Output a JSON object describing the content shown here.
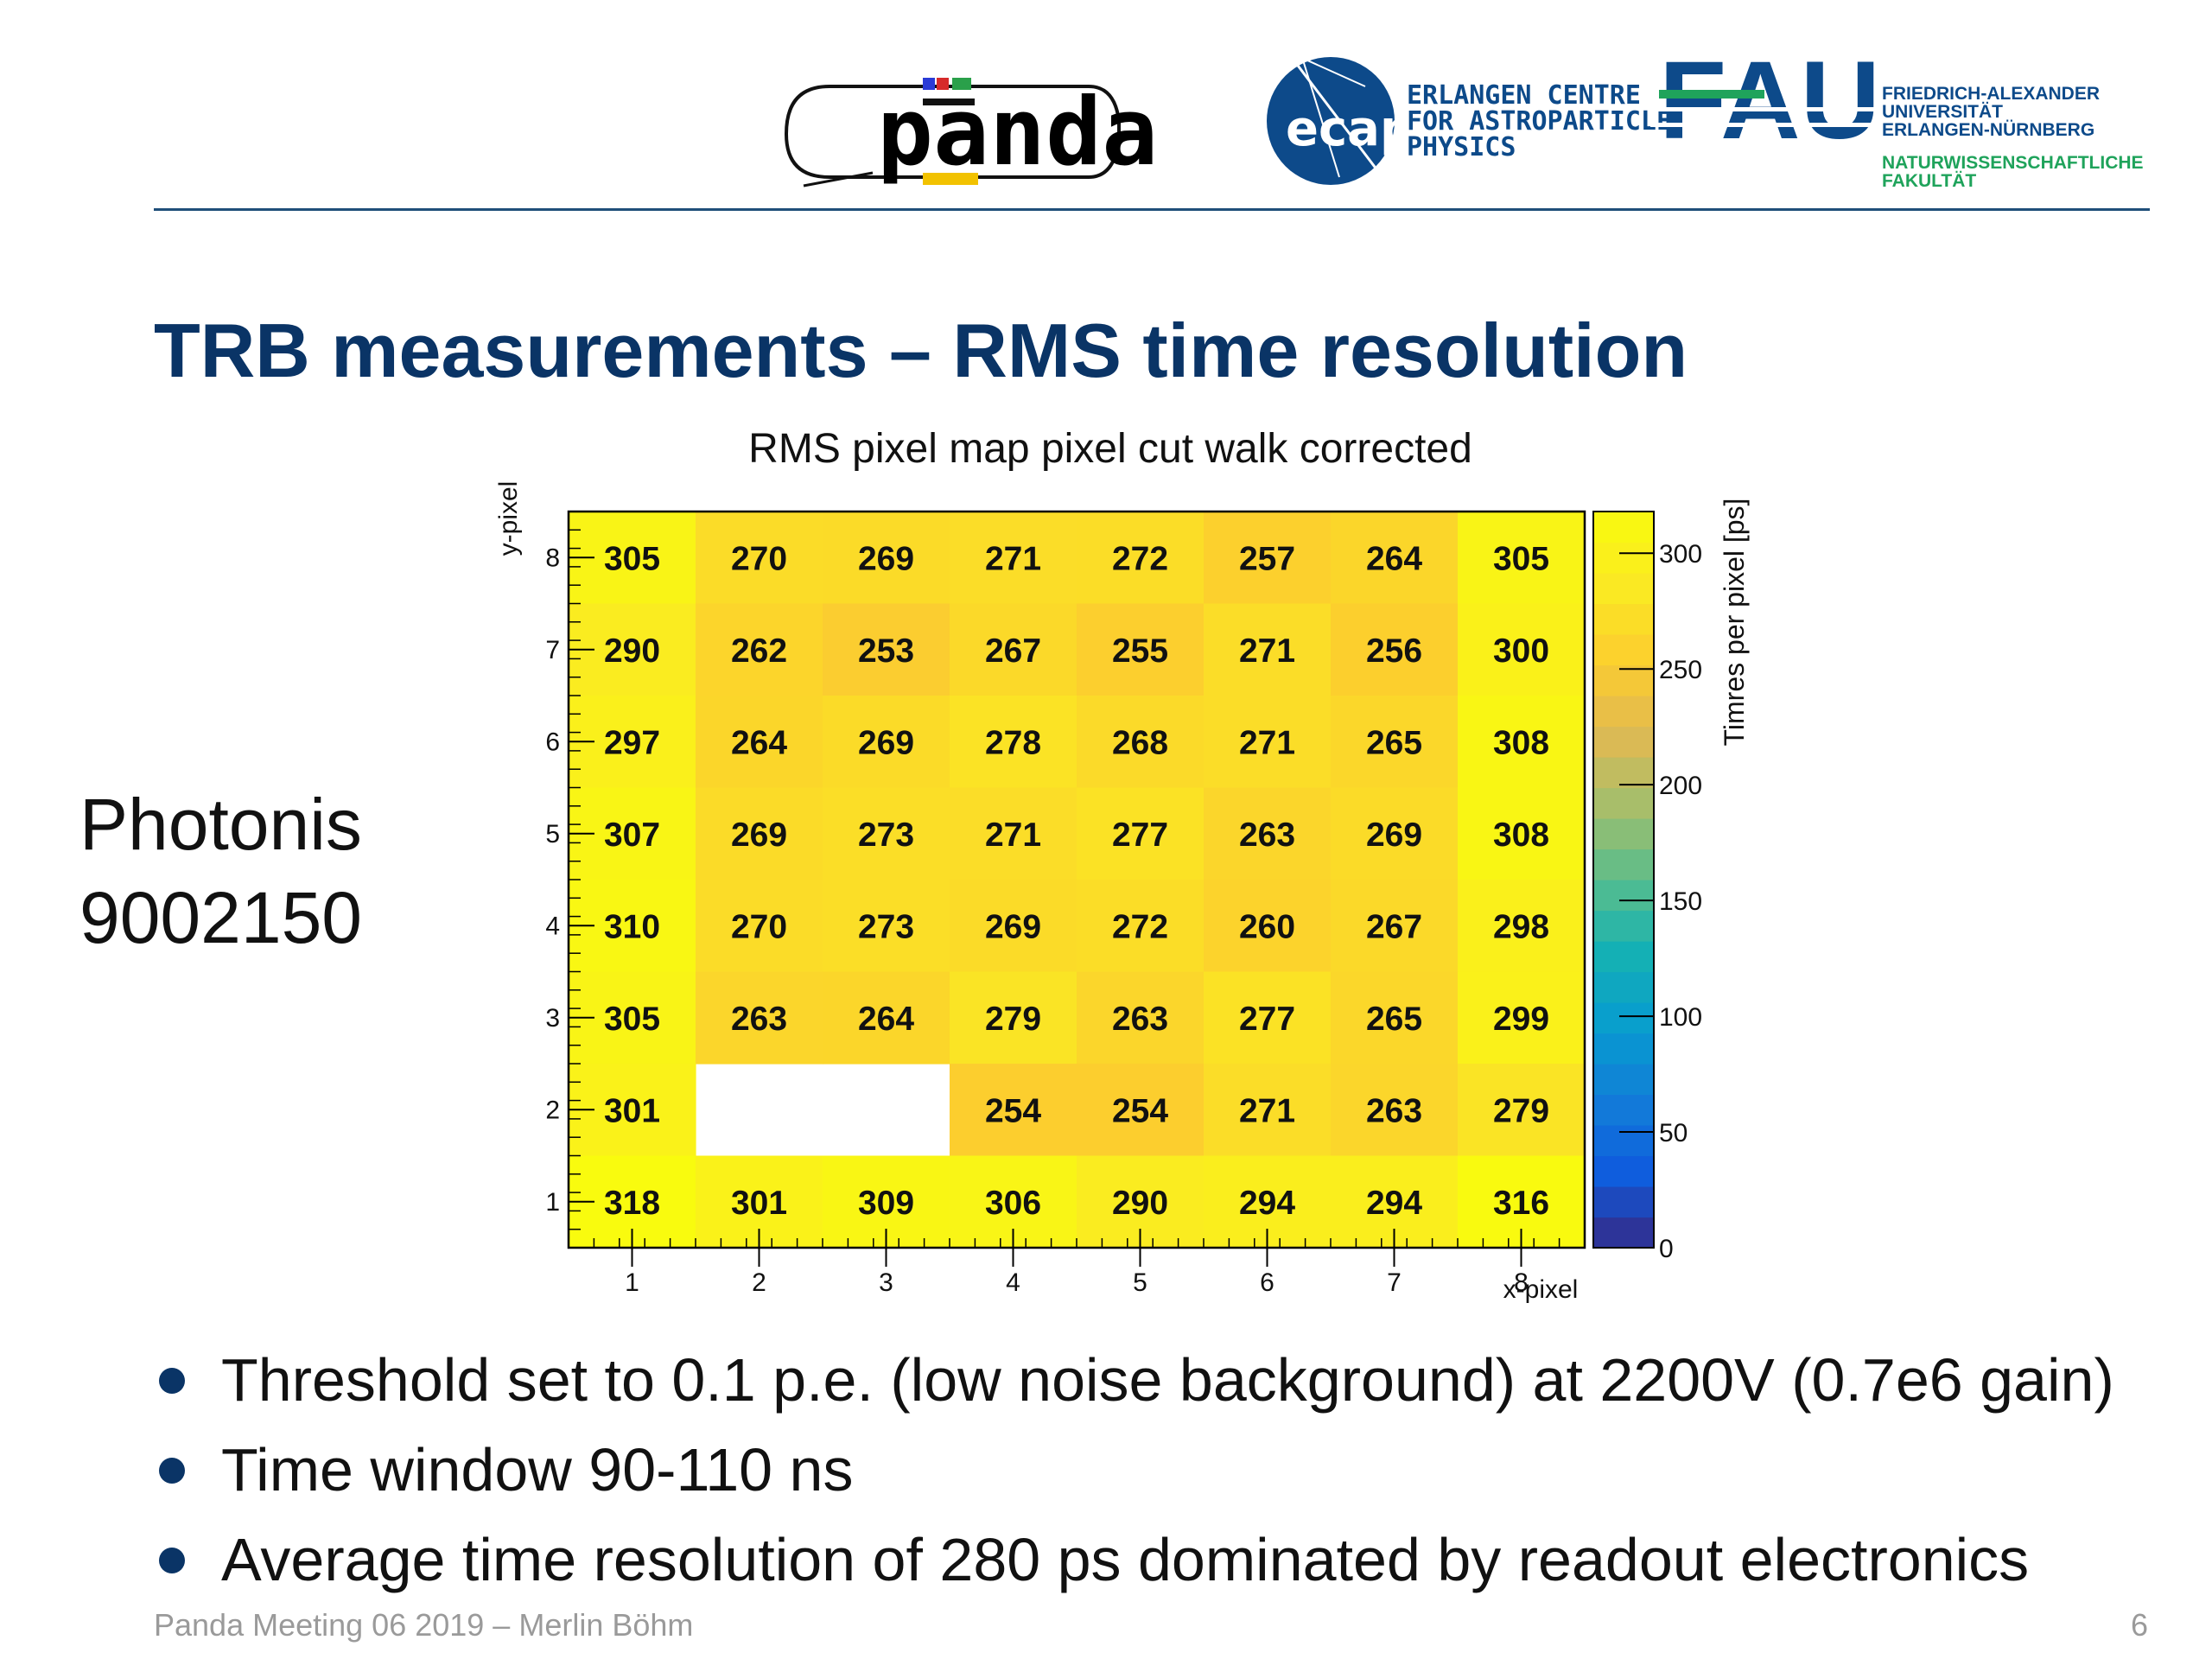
{
  "logos": {
    "panda_wordmark": "panda",
    "ecap_mark": "ecap",
    "ecap_name_lines": [
      "ERLANGEN CENTRE",
      "FOR ASTROPARTICLE",
      "PHYSICS"
    ],
    "fau_mark": "FAU",
    "fau_name_lines": [
      "FRIEDRICH-ALEXANDER",
      "UNIVERSITÄT",
      "ERLANGEN-NÜRNBERG"
    ],
    "fau_faculty_lines": [
      "NATURWISSENSCHAFTLICHE",
      "FAKULTÄT"
    ],
    "colors": {
      "panda_black": "#000000",
      "panda_yellow": "#f2c200",
      "ecap_blue": "#0d4a8a",
      "fau_blue": "#0d4a8a",
      "fau_green": "#1fa35b"
    }
  },
  "slide": {
    "title": "TRB measurements – RMS time resolution",
    "side_label_lines": [
      "Photonis",
      "9002150"
    ],
    "bullets": [
      "Threshold set to 0.1 p.e. (low noise background) at 2200V (0.7e6 gain)",
      "Time window 90-110 ns",
      "Average time resolution of 280 ps dominated by readout electronics"
    ],
    "footer_left": "Panda Meeting 06 2019 – Merlin Böhm",
    "page_number": "6",
    "title_color": "#0a3466"
  },
  "chart_data": {
    "type": "heatmap",
    "title": "RMS pixel map pixel cut walk corrected",
    "xlabel": "x-pixel",
    "ylabel": "y-pixel",
    "zlabel": "Timres per pixel [ps]",
    "x": [
      1,
      2,
      3,
      4,
      5,
      6,
      7,
      8
    ],
    "y": [
      8,
      7,
      6,
      5,
      4,
      3,
      2,
      1
    ],
    "values": [
      [
        305,
        270,
        269,
        271,
        272,
        257,
        264,
        305
      ],
      [
        290,
        262,
        253,
        267,
        255,
        271,
        256,
        300
      ],
      [
        297,
        264,
        269,
        278,
        268,
        271,
        265,
        308
      ],
      [
        307,
        269,
        273,
        271,
        277,
        263,
        269,
        308
      ],
      [
        310,
        270,
        273,
        269,
        272,
        260,
        267,
        298
      ],
      [
        305,
        263,
        264,
        279,
        263,
        277,
        265,
        299
      ],
      [
        301,
        null,
        null,
        254,
        254,
        271,
        263,
        279
      ],
      [
        318,
        301,
        309,
        306,
        290,
        294,
        294,
        316
      ]
    ],
    "x_ticks": [
      "1",
      "2",
      "3",
      "4",
      "5",
      "6",
      "7",
      "8"
    ],
    "y_ticks": [
      "8",
      "7",
      "6",
      "5",
      "4",
      "3",
      "2",
      "1"
    ],
    "zlim": [
      0,
      318
    ],
    "colorbar_ticks": [
      0,
      50,
      100,
      150,
      200,
      250,
      300
    ],
    "colorscale": "parula",
    "grid": false
  }
}
